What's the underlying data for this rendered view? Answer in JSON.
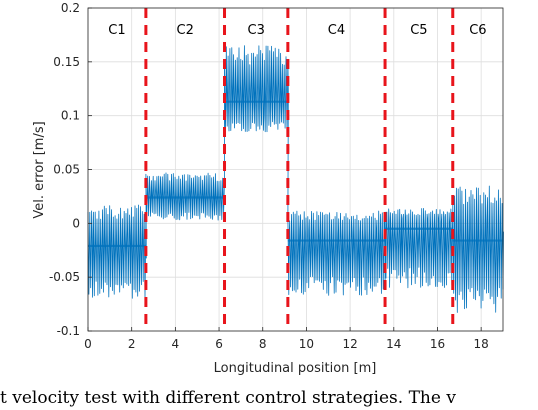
{
  "chart_data": {
    "type": "line",
    "xlabel": "Longitudinal position [m]",
    "ylabel": "Vel. error [m/s]",
    "xlim": [
      0,
      19
    ],
    "ylim": [
      -0.1,
      0.2
    ],
    "xticks": [
      0,
      2,
      4,
      6,
      8,
      10,
      12,
      14,
      16,
      18
    ],
    "yticks": [
      -0.1,
      -0.05,
      0,
      0.05,
      0.1,
      0.15,
      0.2
    ],
    "ytick_labels": [
      "-0.1",
      "-0.05",
      "0",
      "0.05",
      "0.1",
      "0.15",
      "0.2"
    ],
    "grid": true,
    "line_color": "#0072BD",
    "divider_color": "#E8141B",
    "region_dividers": [
      2.65,
      6.25,
      9.15,
      13.6,
      16.7
    ],
    "regions": [
      {
        "label": "C1",
        "x_start": 0,
        "x_end": 2.65,
        "center": -0.021,
        "band_low": -0.07,
        "band_high": 0.017
      },
      {
        "label": "C2",
        "x_start": 2.65,
        "x_end": 6.25,
        "center": 0.024,
        "band_low": 0.003,
        "band_high": 0.047
      },
      {
        "label": "C3",
        "x_start": 6.25,
        "x_end": 9.15,
        "center": 0.113,
        "band_low": 0.085,
        "band_high": 0.165
      },
      {
        "label": "C4",
        "x_start": 9.15,
        "x_end": 13.6,
        "center": -0.016,
        "band_low": -0.067,
        "band_high": 0.012
      },
      {
        "label": "C5",
        "x_start": 13.6,
        "x_end": 16.7,
        "center": -0.005,
        "band_low": -0.06,
        "band_high": 0.014
      },
      {
        "label": "C6",
        "x_start": 16.7,
        "x_end": 19,
        "center": -0.016,
        "band_low": -0.083,
        "band_high": 0.035
      }
    ]
  },
  "caption": "t velocity test with different control strategies. The v"
}
